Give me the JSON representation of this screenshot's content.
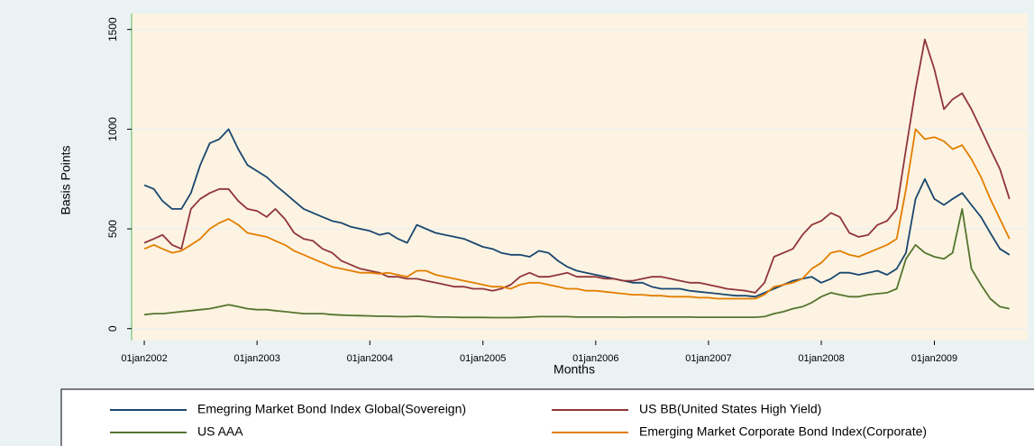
{
  "chart_data": {
    "type": "line",
    "x_label": "Months",
    "y_label": "Basis Points",
    "grid": true,
    "legend": "bottom",
    "xlim": [
      "2001-11-21",
      "2009-10-30"
    ],
    "ylim": [
      -60,
      1580
    ],
    "yticks": [
      0,
      500,
      1000,
      1500
    ],
    "xticks": [
      {
        "value": "2002-01-01",
        "label": "01jan2002"
      },
      {
        "value": "2003-01-01",
        "label": "01jan2003"
      },
      {
        "value": "2004-01-01",
        "label": "01jan2004"
      },
      {
        "value": "2005-01-01",
        "label": "01jan2005"
      },
      {
        "value": "2006-01-01",
        "label": "01jan2006"
      },
      {
        "value": "2007-01-01",
        "label": "01jan2007"
      },
      {
        "value": "2008-01-01",
        "label": "01jan2008"
      },
      {
        "value": "2009-01-01",
        "label": "01jan2009"
      }
    ],
    "x": [
      "2002-01-01",
      "2002-02-01",
      "2002-03-01",
      "2002-04-01",
      "2002-05-01",
      "2002-06-01",
      "2002-07-01",
      "2002-08-01",
      "2002-09-01",
      "2002-10-01",
      "2002-11-01",
      "2002-12-01",
      "2003-01-01",
      "2003-02-01",
      "2003-03-01",
      "2003-04-01",
      "2003-05-01",
      "2003-06-01",
      "2003-07-01",
      "2003-08-01",
      "2003-09-01",
      "2003-10-01",
      "2003-11-01",
      "2003-12-01",
      "2004-01-01",
      "2004-02-01",
      "2004-03-01",
      "2004-04-01",
      "2004-05-01",
      "2004-06-01",
      "2004-07-01",
      "2004-08-01",
      "2004-09-01",
      "2004-10-01",
      "2004-11-01",
      "2004-12-01",
      "2005-01-01",
      "2005-02-01",
      "2005-03-01",
      "2005-04-01",
      "2005-05-01",
      "2005-06-01",
      "2005-07-01",
      "2005-08-01",
      "2005-09-01",
      "2005-10-01",
      "2005-11-01",
      "2005-12-01",
      "2006-01-01",
      "2006-02-01",
      "2006-03-01",
      "2006-04-01",
      "2006-05-01",
      "2006-06-01",
      "2006-07-01",
      "2006-08-01",
      "2006-09-01",
      "2006-10-01",
      "2006-11-01",
      "2006-12-01",
      "2007-01-01",
      "2007-02-01",
      "2007-03-01",
      "2007-04-01",
      "2007-05-01",
      "2007-06-01",
      "2007-07-01",
      "2007-08-01",
      "2007-09-01",
      "2007-10-01",
      "2007-11-01",
      "2007-12-01",
      "2008-01-01",
      "2008-02-01",
      "2008-03-01",
      "2008-04-01",
      "2008-05-01",
      "2008-06-01",
      "2008-07-01",
      "2008-08-01",
      "2008-09-01",
      "2008-10-01",
      "2008-11-01",
      "2008-12-01",
      "2009-01-01",
      "2009-02-01",
      "2009-03-01",
      "2009-04-01",
      "2009-05-01",
      "2009-06-01",
      "2009-07-01",
      "2009-08-01",
      "2009-09-01"
    ],
    "series": [
      {
        "name": "Emegring Market Bond Index Global(Sovereign)",
        "color": "#1a476f",
        "values": [
          720,
          700,
          640,
          600,
          600,
          680,
          820,
          930,
          950,
          1000,
          900,
          820,
          790,
          760,
          720,
          680,
          640,
          600,
          580,
          560,
          540,
          530,
          510,
          500,
          490,
          470,
          480,
          450,
          430,
          520,
          500,
          480,
          470,
          460,
          450,
          430,
          410,
          400,
          380,
          370,
          370,
          360,
          390,
          380,
          340,
          310,
          290,
          280,
          270,
          260,
          250,
          240,
          230,
          230,
          210,
          200,
          200,
          200,
          190,
          185,
          180,
          175,
          170,
          165,
          165,
          160,
          180,
          200,
          220,
          240,
          250,
          260,
          230,
          250,
          280,
          280,
          270,
          280,
          290,
          270,
          300,
          380,
          650,
          750,
          650,
          620,
          650,
          680,
          620,
          560,
          480,
          400,
          370
        ]
      },
      {
        "name": "US BB(United States High Yield)",
        "color": "#90353b",
        "values": [
          430,
          450,
          470,
          420,
          400,
          600,
          650,
          680,
          700,
          700,
          640,
          600,
          590,
          560,
          600,
          550,
          480,
          450,
          440,
          400,
          380,
          340,
          320,
          300,
          290,
          280,
          260,
          260,
          250,
          250,
          240,
          230,
          220,
          210,
          210,
          200,
          200,
          190,
          200,
          220,
          260,
          280,
          260,
          260,
          270,
          280,
          260,
          260,
          260,
          250,
          250,
          240,
          240,
          250,
          260,
          260,
          250,
          240,
          230,
          230,
          220,
          210,
          200,
          195,
          190,
          180,
          230,
          360,
          380,
          400,
          470,
          520,
          540,
          580,
          560,
          480,
          460,
          470,
          520,
          540,
          600,
          900,
          1200,
          1450,
          1300,
          1100,
          1150,
          1180,
          1100,
          1000,
          900,
          800,
          650
        ]
      },
      {
        "name": "US AAA",
        "color": "#55752f",
        "values": [
          70,
          75,
          75,
          80,
          85,
          90,
          95,
          100,
          110,
          120,
          110,
          100,
          95,
          95,
          90,
          85,
          80,
          75,
          75,
          75,
          70,
          68,
          66,
          65,
          64,
          62,
          62,
          60,
          60,
          62,
          60,
          58,
          58,
          57,
          56,
          56,
          56,
          55,
          55,
          55,
          56,
          58,
          60,
          60,
          60,
          60,
          58,
          58,
          58,
          58,
          58,
          57,
          58,
          58,
          58,
          58,
          58,
          58,
          58,
          57,
          57,
          57,
          57,
          57,
          57,
          57,
          60,
          75,
          85,
          100,
          110,
          130,
          160,
          180,
          170,
          160,
          160,
          170,
          175,
          180,
          200,
          350,
          420,
          380,
          360,
          350,
          380,
          600,
          300,
          220,
          150,
          110,
          100
        ]
      },
      {
        "name": "Emerging Market Corporate Bond Index(Corporate)",
        "color": "#e37e00",
        "values": [
          400,
          420,
          400,
          380,
          390,
          420,
          450,
          500,
          530,
          550,
          520,
          480,
          470,
          460,
          440,
          420,
          390,
          370,
          350,
          330,
          310,
          300,
          290,
          280,
          280,
          275,
          280,
          270,
          260,
          290,
          290,
          270,
          260,
          250,
          240,
          230,
          220,
          210,
          210,
          200,
          220,
          230,
          230,
          220,
          210,
          200,
          200,
          190,
          190,
          185,
          180,
          175,
          170,
          170,
          165,
          165,
          160,
          160,
          160,
          155,
          155,
          150,
          150,
          150,
          150,
          150,
          170,
          210,
          220,
          230,
          250,
          300,
          330,
          380,
          390,
          370,
          360,
          380,
          400,
          420,
          450,
          700,
          1000,
          950,
          960,
          940,
          900,
          920,
          850,
          760,
          650,
          550,
          450
        ]
      }
    ]
  }
}
